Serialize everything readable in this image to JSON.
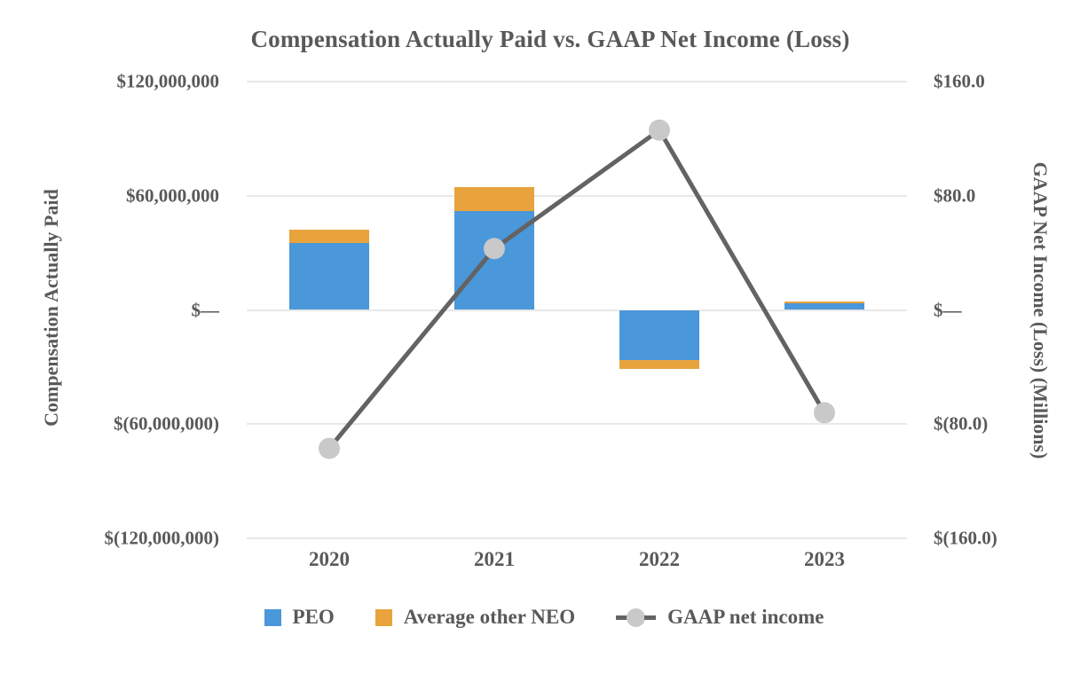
{
  "title": "Compensation Actually Paid vs. GAAP Net Income (Loss)",
  "left_axis": {
    "title": "Compensation Actually Paid",
    "range": [
      -120000000,
      120000000
    ],
    "ticks": [
      {
        "label": "$120,000,000",
        "value": 120000000
      },
      {
        "label": "$60,000,000",
        "value": 60000000
      },
      {
        "label": "$—",
        "value": 0
      },
      {
        "label": "$(60,000,000)",
        "value": -60000000
      },
      {
        "label": "$(120,000,000)",
        "value": -120000000
      }
    ]
  },
  "right_axis": {
    "title": "GAAP Net Income (Loss) (Millions)",
    "range": [
      -160,
      160
    ],
    "ticks": [
      {
        "label": "$160.0",
        "value": 160
      },
      {
        "label": "$80.0",
        "value": 80
      },
      {
        "label": "$—",
        "value": 0
      },
      {
        "label": "$(80.0)",
        "value": -80
      },
      {
        "label": "$(160.0)",
        "value": -160
      }
    ]
  },
  "legend": {
    "items": [
      {
        "label": "PEO",
        "swatch": "square",
        "color": "#4A97D9"
      },
      {
        "label": "Average other NEO",
        "swatch": "square",
        "color": "#E8A33D"
      },
      {
        "label": "GAAP net income",
        "swatch": "line-marker",
        "color": "#636363",
        "marker_color": "#C9C9C9"
      }
    ]
  },
  "colors": {
    "peo_bar": "#4A97D9",
    "neo_bar": "#E8A33D",
    "gaap_line": "#636363",
    "gaap_marker": "#C9C9C9",
    "gridline": "#E8E8E8",
    "text": "#595959",
    "background": "#FFFFFF"
  },
  "chart_data": {
    "type": "combo-stacked-bar-line",
    "title": "Compensation Actually Paid vs. GAAP Net Income (Loss)",
    "categories": [
      "2020",
      "2021",
      "2022",
      "2023"
    ],
    "bar_axis": "left",
    "bar_series": [
      {
        "name": "PEO",
        "color": "#4A97D9",
        "values_usd": [
          35000000,
          52000000,
          -26500000,
          3300000
        ]
      },
      {
        "name": "Average other NEO",
        "color": "#E8A33D",
        "values_usd": [
          7000000,
          12500000,
          -4700000,
          900000
        ]
      }
    ],
    "line_series": {
      "name": "GAAP net income",
      "axis": "right",
      "color": "#636363",
      "marker_color": "#C9C9C9",
      "values_millions": [
        -97,
        43,
        126,
        -72
      ]
    },
    "left_ylim": [
      -120000000,
      120000000
    ],
    "right_ylim": [
      -160,
      160
    ],
    "grid": true,
    "legend_position": "bottom"
  }
}
